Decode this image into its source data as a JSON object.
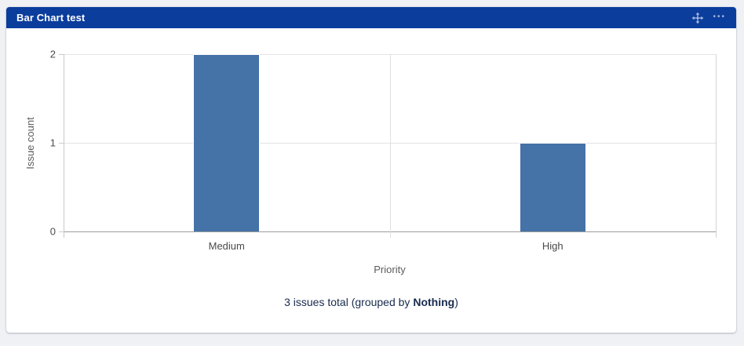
{
  "widget": {
    "title": "Bar Chart test",
    "header_icons": [
      "move-icon",
      "more-icon"
    ],
    "more_icon_glyph": "•••",
    "colors": {
      "header_bg": "#0b3d9d",
      "header_text": "#ffffff",
      "page_bg": "#f0f1f4",
      "card_bg": "#ffffff",
      "footer_text": "#172b4d",
      "bar_fill": "#4572a7"
    }
  },
  "chart_data": {
    "type": "bar",
    "title": "",
    "categories": [
      "Medium",
      "High"
    ],
    "values": [
      2,
      1
    ],
    "xlabel": "Priority",
    "ylabel": "Issue count",
    "ylim": [
      0,
      2
    ],
    "yticks": [
      0,
      1,
      2
    ],
    "grid": true,
    "legend_position": "none",
    "bar_color": "#4572a7"
  },
  "footer": {
    "prefix": "3 issues total (grouped by ",
    "grouped_by": "Nothing",
    "suffix": ")"
  }
}
